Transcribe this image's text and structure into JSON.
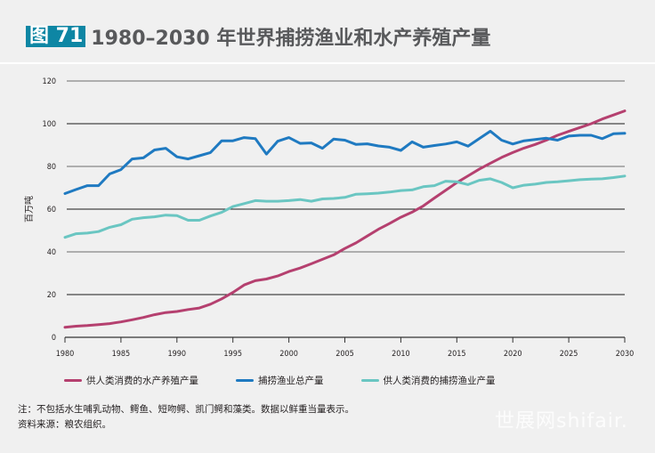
{
  "header": {
    "figure_label": "图 71",
    "title": "1980–2030 年世界捕捞渔业和水产养殖产量"
  },
  "notes": {
    "note": "注：不包括水生哺乳动物、鳄鱼、短吻鳄、凯门鳄和藻类。数据以鲜重当量表示。",
    "source": "资料来源：粮农组织。"
  },
  "watermark": "世展网shifair.",
  "chart_data": {
    "type": "line",
    "title": "1980–2030 年世界捕捞渔业和水产养殖产量",
    "xlabel": "",
    "ylabel": "百万吨",
    "xlim": [
      1980,
      2030
    ],
    "ylim": [
      0,
      120
    ],
    "x_ticks": [
      1980,
      1985,
      1990,
      1995,
      2000,
      2005,
      2010,
      2015,
      2020,
      2025,
      2030
    ],
    "y_ticks": [
      0,
      20,
      40,
      60,
      80,
      100,
      120
    ],
    "grid": "horizontal",
    "legend_position": "bottom",
    "x": [
      1980,
      1981,
      1982,
      1983,
      1984,
      1985,
      1986,
      1987,
      1988,
      1989,
      1990,
      1991,
      1992,
      1993,
      1994,
      1995,
      1996,
      1997,
      1998,
      1999,
      2000,
      2001,
      2002,
      2003,
      2004,
      2005,
      2006,
      2007,
      2008,
      2009,
      2010,
      2011,
      2012,
      2013,
      2014,
      2015,
      2016,
      2017,
      2018,
      2019,
      2020,
      2021,
      2022,
      2023,
      2024,
      2025,
      2026,
      2027,
      2028,
      2029,
      2030
    ],
    "series": [
      {
        "name": "供人类消费的水产养殖产量",
        "color": "#b5406f",
        "values": [
          4.7,
          5.2,
          5.5,
          5.9,
          6.4,
          7.2,
          8.2,
          9.3,
          10.6,
          11.6,
          12.1,
          13.0,
          13.7,
          15.5,
          18.0,
          21.0,
          24.5,
          26.5,
          27.3,
          28.7,
          30.8,
          32.4,
          34.4,
          36.5,
          38.6,
          41.6,
          44.2,
          47.4,
          50.6,
          53.3,
          56.2,
          58.6,
          61.5,
          65.2,
          68.8,
          72.4,
          75.6,
          78.7,
          81.5,
          84.2,
          86.5,
          88.6,
          90.3,
          92.3,
          94.6,
          96.4,
          98.2,
          100.0,
          102.2,
          104.1,
          106.0
        ]
      },
      {
        "name": "捕捞渔业总产量",
        "color": "#1f7ac1",
        "values": [
          67.3,
          69.2,
          71.0,
          71.0,
          76.5,
          78.5,
          83.5,
          84.0,
          87.7,
          88.5,
          84.5,
          83.5,
          85.0,
          86.5,
          92.0,
          92.0,
          93.5,
          93.0,
          85.8,
          91.8,
          93.5,
          90.8,
          91.0,
          88.5,
          92.8,
          92.3,
          90.3,
          90.6,
          89.6,
          89.0,
          87.5,
          91.5,
          89.0,
          89.8,
          90.5,
          91.5,
          89.5,
          93.0,
          96.5,
          92.3,
          90.5,
          92.0,
          92.6,
          93.2,
          92.3,
          94.2,
          94.6,
          94.6,
          93.0,
          95.3,
          95.5
        ]
      },
      {
        "name": "供人类消费的捕捞渔业产量",
        "color": "#6ac6c2",
        "values": [
          46.8,
          48.5,
          48.8,
          49.5,
          51.5,
          52.7,
          55.3,
          56.0,
          56.4,
          57.2,
          57.0,
          54.8,
          54.8,
          56.8,
          58.5,
          61.2,
          62.6,
          64.0,
          63.7,
          63.7,
          64.0,
          64.5,
          63.7,
          64.8,
          65.0,
          65.5,
          67.0,
          67.2,
          67.5,
          68.0,
          68.7,
          69.0,
          70.5,
          71.0,
          73.1,
          72.8,
          71.5,
          73.5,
          74.2,
          72.5,
          70.0,
          71.2,
          71.7,
          72.5,
          72.8,
          73.3,
          73.8,
          74.1,
          74.2,
          74.8,
          75.5
        ]
      }
    ]
  }
}
